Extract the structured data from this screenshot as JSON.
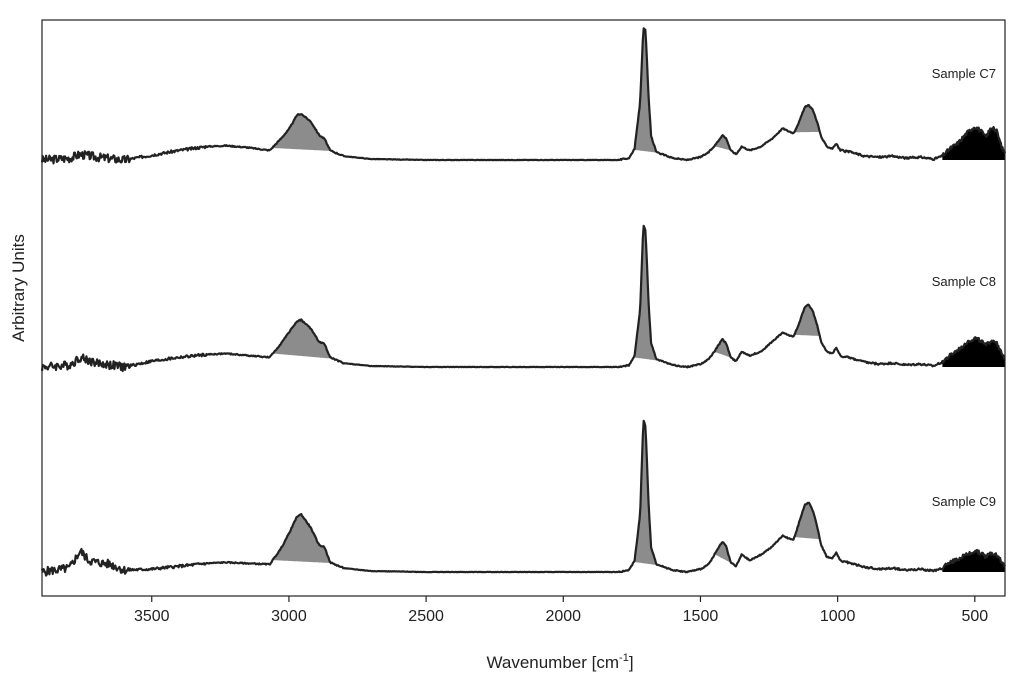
{
  "chart_data": {
    "type": "line",
    "title": "",
    "xlabel": "Wavenumber [cm",
    "xlabel_sup": "-1",
    "xlabel_close": "]",
    "ylabel": "Arbitrary Units",
    "xlim": [
      3900,
      390
    ],
    "x_reversed": true,
    "xticks": [
      3500,
      3000,
      2500,
      2000,
      1500,
      1000,
      500
    ],
    "grid": false,
    "colors": {
      "line": "#222222",
      "peak_fill": "#8c8c8c",
      "low_fill": "#000000"
    },
    "shaded_regions": [
      {
        "from": 3060,
        "to": 2840,
        "fill": "gray"
      },
      {
        "from": 1745,
        "to": 1650,
        "fill": "gray"
      },
      {
        "from": 1450,
        "to": 1385,
        "fill": "gray"
      },
      {
        "from": 1160,
        "to": 1065,
        "fill": "gray"
      },
      {
        "from": 620,
        "to": 390,
        "fill": "black"
      }
    ],
    "series": [
      {
        "name": "Sample C7",
        "points": [
          [
            3900,
            0
          ],
          [
            3800,
            2
          ],
          [
            3760,
            6
          ],
          [
            3700,
            3
          ],
          [
            3600,
            0
          ],
          [
            3500,
            5
          ],
          [
            3400,
            10
          ],
          [
            3300,
            14
          ],
          [
            3230,
            15
          ],
          [
            3150,
            13
          ],
          [
            3070,
            10
          ],
          [
            3030,
            22
          ],
          [
            3000,
            32
          ],
          [
            2970,
            47
          ],
          [
            2955,
            48
          ],
          [
            2920,
            40
          ],
          [
            2890,
            26
          ],
          [
            2870,
            22
          ],
          [
            2850,
            10
          ],
          [
            2800,
            4
          ],
          [
            2700,
            1
          ],
          [
            2500,
            0
          ],
          [
            2300,
            0
          ],
          [
            2000,
            0
          ],
          [
            1800,
            0
          ],
          [
            1760,
            2
          ],
          [
            1740,
            12
          ],
          [
            1720,
            60
          ],
          [
            1708,
            138
          ],
          [
            1700,
            135
          ],
          [
            1690,
            70
          ],
          [
            1680,
            25
          ],
          [
            1660,
            8
          ],
          [
            1600,
            2
          ],
          [
            1550,
            0
          ],
          [
            1500,
            3
          ],
          [
            1470,
            8
          ],
          [
            1445,
            16
          ],
          [
            1420,
            26
          ],
          [
            1405,
            22
          ],
          [
            1390,
            10
          ],
          [
            1370,
            6
          ],
          [
            1350,
            14
          ],
          [
            1320,
            10
          ],
          [
            1280,
            14
          ],
          [
            1240,
            22
          ],
          [
            1200,
            33
          ],
          [
            1180,
            30
          ],
          [
            1160,
            28
          ],
          [
            1140,
            40
          ],
          [
            1120,
            55
          ],
          [
            1105,
            57
          ],
          [
            1090,
            52
          ],
          [
            1075,
            40
          ],
          [
            1060,
            24
          ],
          [
            1040,
            14
          ],
          [
            1020,
            12
          ],
          [
            1005,
            17
          ],
          [
            990,
            10
          ],
          [
            950,
            8
          ],
          [
            900,
            4
          ],
          [
            850,
            3
          ],
          [
            800,
            4
          ],
          [
            750,
            2
          ],
          [
            700,
            3
          ],
          [
            650,
            1
          ],
          [
            620,
            4
          ],
          [
            590,
            12
          ],
          [
            560,
            18
          ],
          [
            530,
            28
          ],
          [
            500,
            35
          ],
          [
            480,
            31
          ],
          [
            460,
            24
          ],
          [
            440,
            34
          ],
          [
            420,
            30
          ],
          [
            400,
            12
          ],
          [
            390,
            8
          ]
        ]
      },
      {
        "name": "Sample C8",
        "points": [
          [
            3900,
            0
          ],
          [
            3800,
            2
          ],
          [
            3760,
            10
          ],
          [
            3700,
            4
          ],
          [
            3600,
            0
          ],
          [
            3500,
            6
          ],
          [
            3400,
            10
          ],
          [
            3300,
            13
          ],
          [
            3230,
            14
          ],
          [
            3150,
            12
          ],
          [
            3070,
            10
          ],
          [
            3030,
            24
          ],
          [
            3000,
            36
          ],
          [
            2970,
            48
          ],
          [
            2955,
            49
          ],
          [
            2920,
            40
          ],
          [
            2890,
            26
          ],
          [
            2870,
            24
          ],
          [
            2850,
            10
          ],
          [
            2800,
            4
          ],
          [
            2700,
            1
          ],
          [
            2500,
            0
          ],
          [
            2300,
            0
          ],
          [
            2000,
            0
          ],
          [
            1800,
            0
          ],
          [
            1760,
            2
          ],
          [
            1740,
            12
          ],
          [
            1720,
            60
          ],
          [
            1708,
            148
          ],
          [
            1700,
            142
          ],
          [
            1690,
            72
          ],
          [
            1680,
            25
          ],
          [
            1660,
            8
          ],
          [
            1600,
            2
          ],
          [
            1550,
            0
          ],
          [
            1500,
            3
          ],
          [
            1470,
            8
          ],
          [
            1445,
            18
          ],
          [
            1420,
            29
          ],
          [
            1405,
            24
          ],
          [
            1390,
            10
          ],
          [
            1370,
            6
          ],
          [
            1350,
            16
          ],
          [
            1320,
            12
          ],
          [
            1280,
            16
          ],
          [
            1240,
            26
          ],
          [
            1200,
            36
          ],
          [
            1180,
            33
          ],
          [
            1160,
            32
          ],
          [
            1140,
            46
          ],
          [
            1120,
            62
          ],
          [
            1105,
            65
          ],
          [
            1090,
            58
          ],
          [
            1075,
            44
          ],
          [
            1060,
            26
          ],
          [
            1040,
            16
          ],
          [
            1020,
            14
          ],
          [
            1005,
            20
          ],
          [
            990,
            12
          ],
          [
            950,
            9
          ],
          [
            900,
            5
          ],
          [
            850,
            3
          ],
          [
            800,
            4
          ],
          [
            750,
            2
          ],
          [
            700,
            3
          ],
          [
            650,
            1
          ],
          [
            620,
            5
          ],
          [
            590,
            12
          ],
          [
            560,
            18
          ],
          [
            530,
            26
          ],
          [
            500,
            30
          ],
          [
            480,
            28
          ],
          [
            460,
            22
          ],
          [
            440,
            28
          ],
          [
            420,
            26
          ],
          [
            400,
            12
          ],
          [
            390,
            8
          ]
        ]
      },
      {
        "name": "Sample C9",
        "points": [
          [
            3900,
            0
          ],
          [
            3800,
            4
          ],
          [
            3760,
            22
          ],
          [
            3730,
            12
          ],
          [
            3700,
            10
          ],
          [
            3650,
            8
          ],
          [
            3600,
            2
          ],
          [
            3500,
            3
          ],
          [
            3400,
            6
          ],
          [
            3300,
            9
          ],
          [
            3230,
            10
          ],
          [
            3150,
            9
          ],
          [
            3070,
            8
          ],
          [
            3030,
            24
          ],
          [
            3000,
            40
          ],
          [
            2970,
            58
          ],
          [
            2955,
            60
          ],
          [
            2920,
            46
          ],
          [
            2890,
            28
          ],
          [
            2870,
            26
          ],
          [
            2850,
            10
          ],
          [
            2800,
            4
          ],
          [
            2700,
            1
          ],
          [
            2500,
            0
          ],
          [
            2300,
            0
          ],
          [
            2000,
            0
          ],
          [
            1800,
            0
          ],
          [
            1760,
            2
          ],
          [
            1740,
            12
          ],
          [
            1720,
            60
          ],
          [
            1708,
            158
          ],
          [
            1700,
            152
          ],
          [
            1690,
            76
          ],
          [
            1680,
            26
          ],
          [
            1660,
            8
          ],
          [
            1600,
            2
          ],
          [
            1550,
            0
          ],
          [
            1500,
            3
          ],
          [
            1470,
            8
          ],
          [
            1445,
            20
          ],
          [
            1420,
            32
          ],
          [
            1405,
            26
          ],
          [
            1390,
            10
          ],
          [
            1370,
            6
          ],
          [
            1350,
            18
          ],
          [
            1320,
            12
          ],
          [
            1280,
            18
          ],
          [
            1240,
            26
          ],
          [
            1200,
            38
          ],
          [
            1180,
            35
          ],
          [
            1160,
            34
          ],
          [
            1140,
            52
          ],
          [
            1120,
            70
          ],
          [
            1105,
            72
          ],
          [
            1090,
            64
          ],
          [
            1075,
            48
          ],
          [
            1060,
            28
          ],
          [
            1040,
            16
          ],
          [
            1020,
            14
          ],
          [
            1005,
            20
          ],
          [
            990,
            12
          ],
          [
            950,
            9
          ],
          [
            900,
            5
          ],
          [
            850,
            3
          ],
          [
            800,
            4
          ],
          [
            750,
            2
          ],
          [
            700,
            3
          ],
          [
            650,
            1
          ],
          [
            620,
            4
          ],
          [
            590,
            10
          ],
          [
            560,
            14
          ],
          [
            530,
            18
          ],
          [
            500,
            22
          ],
          [
            480,
            20
          ],
          [
            460,
            16
          ],
          [
            440,
            20
          ],
          [
            420,
            18
          ],
          [
            400,
            10
          ],
          [
            390,
            6
          ]
        ]
      }
    ]
  }
}
